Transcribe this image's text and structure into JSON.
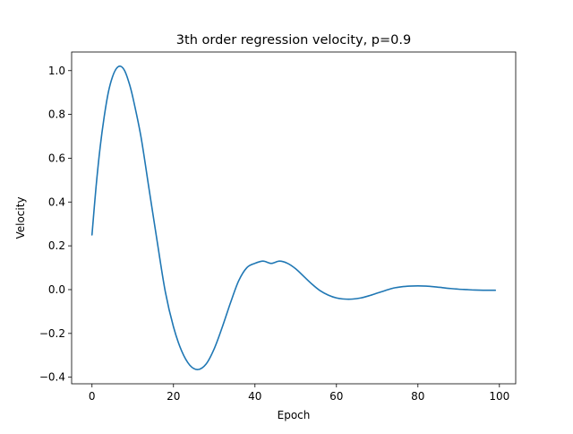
{
  "chart_data": {
    "type": "line",
    "title": "3th order regression velocity, p=0.9",
    "xlabel": "Epoch",
    "ylabel": "Velocity",
    "xlim": [
      -5,
      104
    ],
    "ylim": [
      -0.43,
      1.085
    ],
    "xticks": [
      0,
      20,
      40,
      60,
      80,
      100
    ],
    "xtick_labels": [
      "0",
      "20",
      "40",
      "60",
      "80",
      "100"
    ],
    "yticks": [
      -0.4,
      -0.2,
      0.0,
      0.2,
      0.4,
      0.6,
      0.8,
      1.0
    ],
    "ytick_labels": [
      "−0.4",
      "−0.2",
      "0.0",
      "0.2",
      "0.4",
      "0.6",
      "0.8",
      "1.0"
    ],
    "grid": false,
    "legend": "none",
    "series": [
      {
        "color": "#1f77b4",
        "x": [
          0,
          1,
          2,
          3,
          4,
          5,
          6,
          7,
          8,
          9,
          10,
          12,
          14,
          16,
          18,
          20,
          22,
          24,
          26,
          28,
          30,
          32,
          34,
          36,
          38,
          40,
          42,
          44,
          46,
          48,
          50,
          52,
          54,
          56,
          58,
          60,
          62,
          64,
          66,
          68,
          70,
          72,
          74,
          76,
          78,
          80,
          82,
          84,
          86,
          88,
          90,
          92,
          94,
          96,
          98,
          99
        ],
        "y": [
          0.25,
          0.47,
          0.65,
          0.79,
          0.9,
          0.97,
          1.01,
          1.02,
          1.0,
          0.95,
          0.88,
          0.7,
          0.46,
          0.22,
          -0.01,
          -0.17,
          -0.28,
          -0.345,
          -0.365,
          -0.34,
          -0.27,
          -0.17,
          -0.06,
          0.04,
          0.1,
          0.12,
          0.13,
          0.12,
          0.13,
          0.12,
          0.095,
          0.06,
          0.025,
          -0.005,
          -0.025,
          -0.038,
          -0.043,
          -0.043,
          -0.038,
          -0.028,
          -0.016,
          -0.004,
          0.007,
          0.013,
          0.016,
          0.017,
          0.016,
          0.013,
          0.009,
          0.005,
          0.002,
          0.0,
          -0.002,
          -0.003,
          -0.003,
          -0.003
        ]
      }
    ]
  }
}
